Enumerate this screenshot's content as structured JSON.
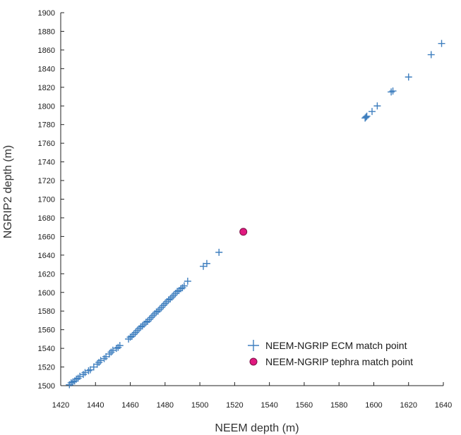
{
  "chart_data": {
    "type": "scatter",
    "title": "",
    "xlabel": "NEEM depth (m)",
    "ylabel": "NGRIP2 depth (m)",
    "xlim": [
      1420,
      1640
    ],
    "ylim": [
      1500,
      1900
    ],
    "xticks": [
      1420,
      1440,
      1460,
      1480,
      1500,
      1520,
      1540,
      1560,
      1580,
      1600,
      1620,
      1640
    ],
    "yticks": [
      1500,
      1520,
      1540,
      1560,
      1580,
      1600,
      1620,
      1640,
      1660,
      1680,
      1700,
      1720,
      1740,
      1760,
      1780,
      1800,
      1820,
      1840,
      1860,
      1880,
      1900
    ],
    "grid": false,
    "legend_position": "bottom-right",
    "series": [
      {
        "name": "NEEM-NGRIP ECM match point",
        "marker": "plus",
        "color": "#3f7fbf",
        "x": [
          1425,
          1426,
          1427,
          1428,
          1429,
          1430,
          1431,
          1433,
          1434,
          1436,
          1437,
          1439,
          1441,
          1442,
          1443,
          1445,
          1446,
          1448,
          1449,
          1450,
          1452,
          1453,
          1454,
          1459,
          1460,
          1461,
          1462,
          1463,
          1464,
          1465,
          1466,
          1467,
          1468,
          1469,
          1470,
          1471,
          1472,
          1473,
          1474,
          1475,
          1476,
          1477,
          1478,
          1479,
          1480,
          1481,
          1482,
          1483,
          1484,
          1485,
          1486,
          1487,
          1488,
          1489,
          1490,
          1491,
          1493,
          1502,
          1504,
          1511,
          1595,
          1595.5,
          1596,
          1599,
          1602,
          1610,
          1611,
          1620,
          1633,
          1639
        ],
        "y": [
          1501,
          1503,
          1504,
          1505,
          1507,
          1508,
          1510,
          1512,
          1514,
          1516,
          1517,
          1520,
          1523,
          1525,
          1527,
          1529,
          1531,
          1534,
          1536,
          1538,
          1540,
          1541,
          1543,
          1550,
          1552,
          1553,
          1555,
          1557,
          1559,
          1561,
          1563,
          1564,
          1566,
          1568,
          1569,
          1571,
          1573,
          1575,
          1577,
          1579,
          1580,
          1582,
          1584,
          1586,
          1588,
          1590,
          1592,
          1593,
          1595,
          1597,
          1599,
          1601,
          1602,
          1604,
          1605,
          1607,
          1612,
          1628,
          1631,
          1643,
          1787,
          1788,
          1789,
          1794,
          1800,
          1815,
          1816,
          1831,
          1855,
          1867
        ]
      },
      {
        "name": "NEEM-NGRIP tephra match point",
        "marker": "circle",
        "color": "#e0197f",
        "x": [
          1525
        ],
        "y": [
          1665
        ]
      }
    ]
  }
}
